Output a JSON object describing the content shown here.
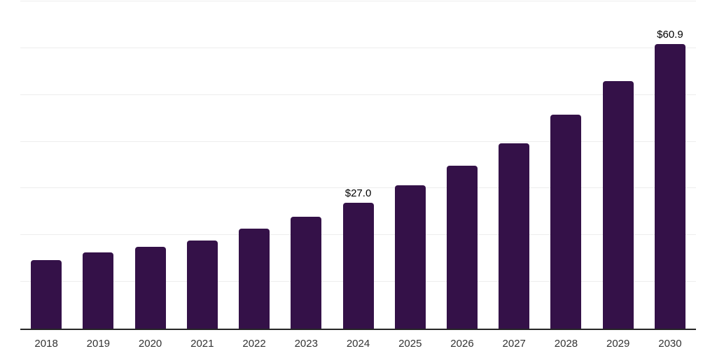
{
  "chart_data": {
    "type": "bar",
    "title": "",
    "xlabel": "",
    "ylabel": "",
    "categories": [
      "2018",
      "2019",
      "2020",
      "2021",
      "2022",
      "2023",
      "2024",
      "2025",
      "2026",
      "2027",
      "2028",
      "2029",
      "2030"
    ],
    "values": [
      14.6,
      16.3,
      17.5,
      18.9,
      21.4,
      23.9,
      27.0,
      30.6,
      34.9,
      39.7,
      45.8,
      52.9,
      60.9
    ],
    "data_labels": [
      "",
      "",
      "",
      "",
      "",
      "",
      "$27.0",
      "",
      "",
      "",
      "",
      "",
      "$60.9"
    ],
    "ylim": [
      0,
      70
    ],
    "grid_step": 10,
    "grid": true,
    "legend": false,
    "colors": {
      "bar": "#341148",
      "grid_line": "#ededed",
      "axis_line": "#262626",
      "tick_label": "#333333",
      "data_label": "#000000",
      "background": "#ffffff"
    }
  }
}
